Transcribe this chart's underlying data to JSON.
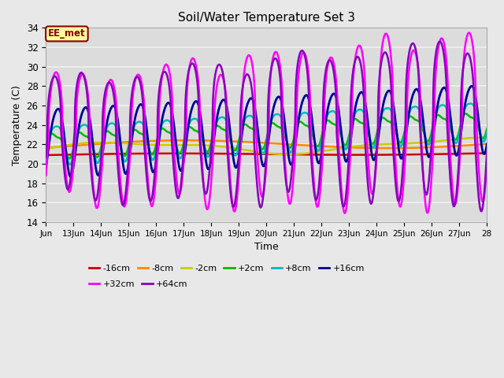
{
  "title": "Soil/Water Temperature Set 3",
  "xlabel": "Time",
  "ylabel": "Temperature (C)",
  "ylim": [
    14,
    34
  ],
  "xlim": [
    0,
    16
  ],
  "fig_facecolor": "#e8e8e8",
  "ax_facecolor": "#dcdcdc",
  "grid_color": "#f0f0f0",
  "annotation_text": "EE_met",
  "annotation_bg": "#ffffa0",
  "annotation_border": "#8b0000",
  "series_names": [
    "-16cm",
    "-8cm",
    "-2cm",
    "+2cm",
    "+8cm",
    "+16cm",
    "+32cm",
    "+64cm"
  ],
  "series_colors": [
    "#cc0000",
    "#ff8800",
    "#cccc00",
    "#00bb00",
    "#00bbbb",
    "#000099",
    "#ff00ff",
    "#8800bb"
  ],
  "xtick_labels": [
    "Jun",
    "13Jun",
    "14Jun",
    "15Jun",
    "16Jun",
    "17Jun",
    "18Jun",
    "19Jun",
    "20Jun",
    "21Jun",
    "22Jun",
    "23Jun",
    "24Jun",
    "25Jun",
    "26Jun",
    "27Jun",
    "28"
  ],
  "ytick_vals": [
    14,
    16,
    18,
    20,
    22,
    24,
    26,
    28,
    30,
    32,
    34
  ]
}
